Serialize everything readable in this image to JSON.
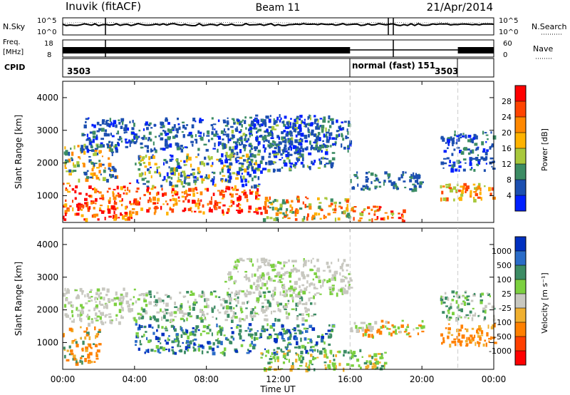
{
  "header": {
    "station": "Inuvik (fitACF)",
    "beam": "Beam 11",
    "date": "21/Apr/2014"
  },
  "panels": {
    "nsky": {
      "label": "N.Sky",
      "ticks": [
        "10^5",
        "10^0"
      ],
      "right_label": "N.Search",
      "right_ticks": [
        "10^5",
        "10^0"
      ]
    },
    "freq": {
      "label_line1": "Freq.",
      "label_line2": "[MHz]",
      "ticks": [
        "18",
        "8"
      ],
      "right_label": "Nave",
      "right_ticks": [
        "60",
        "0"
      ]
    },
    "cpid": {
      "label": "CPID",
      "segments": [
        "3503",
        "normal (fast)",
        "151",
        "3503"
      ]
    }
  },
  "chart_data": [
    {
      "type": "heatmap",
      "title": "Power",
      "xlabel": "Time UT",
      "ylabel": "Slant Range [km]",
      "x_ticks": [
        "00:00",
        "04:00",
        "08:00",
        "12:00",
        "16:00",
        "20:00",
        "00:00"
      ],
      "y_ticks": [
        1000,
        2000,
        3000,
        4000
      ],
      "ylim": [
        180,
        4500
      ],
      "colorbar": {
        "label": "Power [dB]",
        "ticks": [
          "28",
          "24",
          "20",
          "16",
          "12",
          "8",
          "4"
        ],
        "colors": [
          "#ff0000",
          "#ff4400",
          "#ff8800",
          "#ffb300",
          "#a8c83c",
          "#3c8c64",
          "#1c4fb0",
          "#0020ff"
        ]
      }
    },
    {
      "type": "heatmap",
      "title": "Velocity",
      "xlabel": "Time UT",
      "ylabel": "Slant Range [km]",
      "x_ticks": [
        "00:00",
        "04:00",
        "08:00",
        "12:00",
        "16:00",
        "20:00",
        "00:00"
      ],
      "y_ticks": [
        1000,
        2000,
        3000,
        4000
      ],
      "ylim": [
        180,
        4500
      ],
      "colorbar": {
        "label": "Velocity [m s⁻¹]",
        "ticks": [
          "1000",
          "500",
          "100",
          "25",
          "-25",
          "-100",
          "-500",
          "-1000"
        ],
        "colors": [
          "#0030c0",
          "#2a6cc8",
          "#3c8c64",
          "#7cd040",
          "#c8c8c0",
          "#f0b030",
          "#ff8000",
          "#ff4000",
          "#ff0000"
        ]
      }
    }
  ],
  "footer": {
    "xlabel": "Time UT"
  }
}
